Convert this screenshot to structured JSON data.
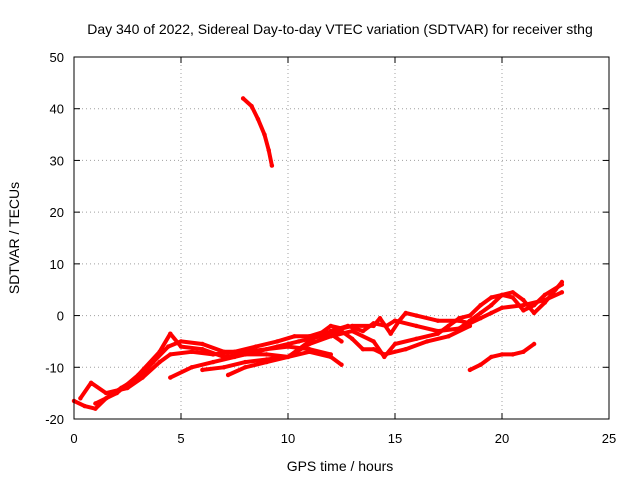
{
  "chart_data": {
    "type": "scatter",
    "title": "Day 340 of 2022, Sidereal Day-to-day VTEC variation (SDTVAR) for receiver sthg",
    "xlabel": "GPS time / hours",
    "ylabel": "SDTVAR / TECUs",
    "xlim": [
      0,
      25
    ],
    "ylim": [
      -20,
      50
    ],
    "xticks": [
      "0",
      "5",
      "10",
      "15",
      "20",
      "25"
    ],
    "yticks": [
      "-20",
      "-10",
      "0",
      "10",
      "20",
      "30",
      "40",
      "50"
    ],
    "grid": true,
    "series_color": "#ff0000",
    "series": [
      {
        "name": "track-1",
        "points": [
          [
            0,
            -16.5
          ],
          [
            0.5,
            -17.5
          ],
          [
            1.0,
            -18
          ],
          [
            1.5,
            -16
          ],
          [
            2.2,
            -14
          ],
          [
            3.0,
            -12
          ],
          [
            3.7,
            -9
          ],
          [
            4.4,
            -6
          ],
          [
            5.0,
            -5
          ],
          [
            6.0,
            -5.5
          ],
          [
            7.0,
            -7
          ],
          [
            8.0,
            -7
          ],
          [
            9.0,
            -6.5
          ],
          [
            10.0,
            -6
          ],
          [
            11.0,
            -6.5
          ],
          [
            12.0,
            -7.5
          ]
        ]
      },
      {
        "name": "track-2",
        "points": [
          [
            0.3,
            -16
          ],
          [
            0.8,
            -13
          ],
          [
            1.5,
            -15
          ],
          [
            2.5,
            -14
          ],
          [
            3.2,
            -12
          ],
          [
            4.0,
            -9
          ],
          [
            4.5,
            -7.5
          ],
          [
            5.5,
            -7
          ],
          [
            6.5,
            -7.5
          ],
          [
            7.5,
            -7
          ],
          [
            8.5,
            -6
          ],
          [
            9.5,
            -5
          ],
          [
            10.3,
            -4
          ],
          [
            11.0,
            -4
          ],
          [
            11.8,
            -3
          ],
          [
            12.5,
            -5
          ]
        ]
      },
      {
        "name": "track-3",
        "points": [
          [
            1.0,
            -17
          ],
          [
            2.0,
            -15
          ],
          [
            3.0,
            -11.5
          ],
          [
            4.0,
            -7
          ],
          [
            4.5,
            -3.5
          ],
          [
            5.0,
            -6
          ],
          [
            6.0,
            -6.5
          ],
          [
            7.0,
            -8
          ],
          [
            8.0,
            -7.5
          ],
          [
            9.0,
            -7.5
          ],
          [
            10.0,
            -8
          ],
          [
            11.0,
            -7
          ],
          [
            12.0,
            -8
          ],
          [
            12.5,
            -9.5
          ]
        ]
      },
      {
        "name": "track-4",
        "points": [
          [
            4.5,
            -12
          ],
          [
            5.5,
            -10
          ],
          [
            6.5,
            -9
          ],
          [
            7.5,
            -8
          ],
          [
            8.5,
            -7
          ],
          [
            9.5,
            -6
          ],
          [
            10.5,
            -5
          ],
          [
            11.5,
            -4
          ],
          [
            12.5,
            -3
          ],
          [
            13.0,
            -4.5
          ],
          [
            13.5,
            -6.5
          ],
          [
            14.0,
            -6.5
          ],
          [
            14.5,
            -7.5
          ],
          [
            15.5,
            -6.5
          ],
          [
            16.5,
            -5
          ],
          [
            17.5,
            -4
          ],
          [
            18.5,
            -2
          ]
        ]
      },
      {
        "name": "track-5",
        "points": [
          [
            6.0,
            -10.5
          ],
          [
            7.0,
            -10
          ],
          [
            8.0,
            -9
          ],
          [
            9.0,
            -8.5
          ],
          [
            10.0,
            -8
          ],
          [
            10.5,
            -6.5
          ],
          [
            11.0,
            -5
          ],
          [
            11.5,
            -3.5
          ],
          [
            12.0,
            -2
          ],
          [
            12.5,
            -2.5
          ],
          [
            13.0,
            -2
          ],
          [
            14.0,
            -2
          ],
          [
            14.3,
            -0.5
          ],
          [
            14.8,
            -3.5
          ],
          [
            15.2,
            -1
          ],
          [
            15.5,
            0.5
          ],
          [
            16.0,
            0
          ],
          [
            17.0,
            -1
          ],
          [
            18.0,
            -1
          ],
          [
            18.5,
            -1.5
          ],
          [
            19.0,
            -0.5
          ],
          [
            19.5,
            0.5
          ],
          [
            20.0,
            1.5
          ],
          [
            21.0,
            2
          ],
          [
            22.0,
            3
          ],
          [
            22.8,
            4.5
          ]
        ]
      },
      {
        "name": "track-6",
        "points": [
          [
            7.2,
            -11.5
          ],
          [
            8.0,
            -10
          ],
          [
            9.0,
            -9
          ],
          [
            10.0,
            -8
          ],
          [
            11.0,
            -5.5
          ],
          [
            12.0,
            -4
          ],
          [
            13.0,
            -3
          ],
          [
            14.0,
            -5
          ],
          [
            14.5,
            -8
          ],
          [
            15.0,
            -5.5
          ],
          [
            16.0,
            -4.5
          ],
          [
            17.0,
            -3.5
          ],
          [
            17.5,
            -2
          ],
          [
            18.0,
            -0.5
          ],
          [
            18.5,
            0
          ],
          [
            19.0,
            2
          ],
          [
            19.5,
            3.5
          ],
          [
            20.0,
            4
          ],
          [
            20.5,
            3.5
          ],
          [
            21.0,
            1
          ],
          [
            21.5,
            2
          ],
          [
            22.0,
            4
          ],
          [
            22.8,
            6
          ]
        ]
      },
      {
        "name": "track-7",
        "points": [
          [
            12.0,
            -3
          ],
          [
            12.8,
            -2
          ],
          [
            13.5,
            -3
          ],
          [
            14.0,
            -1.5
          ],
          [
            14.6,
            -2
          ],
          [
            15.0,
            -1
          ],
          [
            16.0,
            -2
          ],
          [
            17.0,
            -3
          ],
          [
            18.0,
            -2.5
          ],
          [
            18.5,
            -1
          ],
          [
            19.0,
            0.5
          ],
          [
            19.5,
            2
          ],
          [
            20.0,
            4
          ],
          [
            20.5,
            4.5
          ],
          [
            21.0,
            3
          ],
          [
            21.5,
            0.5
          ],
          [
            22.0,
            2.5
          ],
          [
            22.5,
            5
          ],
          [
            22.8,
            6.5
          ]
        ]
      },
      {
        "name": "track-8",
        "points": [
          [
            18.5,
            -10.5
          ],
          [
            19.0,
            -9.5
          ],
          [
            19.5,
            -8
          ],
          [
            20.0,
            -7.5
          ],
          [
            20.5,
            -7.5
          ],
          [
            21.0,
            -7
          ],
          [
            21.5,
            -5.5
          ]
        ]
      },
      {
        "name": "track-9",
        "points": [
          [
            7.9,
            42
          ],
          [
            8.3,
            40.5
          ],
          [
            8.6,
            38
          ],
          [
            8.9,
            35
          ],
          [
            9.1,
            32
          ],
          [
            9.25,
            29
          ]
        ]
      }
    ]
  }
}
